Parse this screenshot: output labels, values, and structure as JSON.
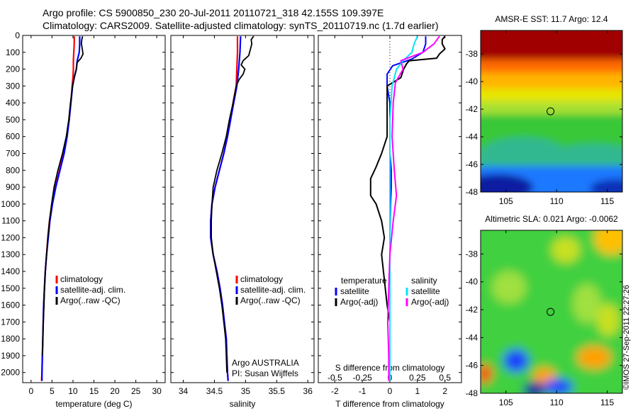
{
  "header": {
    "line1": "Argo profile: CS 5900850_230 20-Jul-2011 20110721_318 42.155S 109.397E",
    "line2": "Climatology: CARS2009. Satellite-adjusted climatology: synTS_20110719.nc (1.7d earlier)"
  },
  "watermark": "©IMOS 27-Sep-2011 22:27:26",
  "colors": {
    "climatology": "#ff0000",
    "satellite": "#0000ff",
    "argo": "#000000",
    "s_satellite": "#00e5ff",
    "s_argo": "#ff00ff"
  },
  "chart_data": [
    {
      "type": "line",
      "xlabel": "temperature (deg C)",
      "ylabel": "",
      "xlim": [
        -2,
        32
      ],
      "ylim": [
        2060,
        0
      ],
      "xticks": [
        0,
        5,
        10,
        15,
        20,
        25,
        30
      ],
      "yticks": [
        0,
        100,
        200,
        300,
        400,
        500,
        600,
        700,
        800,
        900,
        1000,
        1100,
        1200,
        1300,
        1400,
        1500,
        1600,
        1700,
        1800,
        1900,
        2000
      ],
      "legend": [
        "climatology",
        "satellite-adj. clim.",
        "Argo(..raw -QC)"
      ],
      "legend_position": "center-right",
      "series": [
        {
          "name": "climatology",
          "color": "climatology",
          "points": [
            [
              10.3,
              5
            ],
            [
              10.3,
              50
            ],
            [
              10.2,
              100
            ],
            [
              10.1,
              150
            ],
            [
              10.1,
              200
            ],
            [
              10.0,
              250
            ],
            [
              9.8,
              300
            ],
            [
              9.5,
              400
            ],
            [
              9.1,
              500
            ],
            [
              8.5,
              600
            ],
            [
              7.8,
              700
            ],
            [
              6.8,
              800
            ],
            [
              5.8,
              900
            ],
            [
              5.0,
              1000
            ],
            [
              4.4,
              1100
            ],
            [
              4.0,
              1200
            ],
            [
              3.7,
              1300
            ],
            [
              3.4,
              1400
            ],
            [
              3.2,
              1500
            ],
            [
              3.0,
              1600
            ],
            [
              2.9,
              1700
            ],
            [
              2.8,
              1800
            ],
            [
              2.7,
              1900
            ],
            [
              2.6,
              2000
            ],
            [
              2.5,
              2050
            ]
          ]
        },
        {
          "name": "satellite-adj. clim.",
          "color": "satellite",
          "points": [
            [
              11.6,
              5
            ],
            [
              11.6,
              50
            ],
            [
              11.5,
              100
            ],
            [
              11.0,
              150
            ],
            [
              10.8,
              200
            ],
            [
              10.3,
              250
            ],
            [
              9.9,
              300
            ],
            [
              9.5,
              400
            ],
            [
              9.1,
              500
            ],
            [
              8.6,
              600
            ],
            [
              7.9,
              700
            ],
            [
              6.9,
              800
            ],
            [
              5.9,
              900
            ],
            [
              5.1,
              1000
            ],
            [
              4.5,
              1100
            ],
            [
              4.1,
              1200
            ],
            [
              3.7,
              1300
            ],
            [
              3.4,
              1400
            ],
            [
              3.2,
              1500
            ],
            [
              3.0,
              1600
            ],
            [
              2.9,
              1700
            ],
            [
              2.8,
              1800
            ],
            [
              2.7,
              1900
            ],
            [
              2.6,
              2000
            ],
            [
              2.6,
              2050
            ]
          ]
        },
        {
          "name": "Argo(..raw -QC)",
          "color": "argo",
          "points": [
            [
              12.3,
              5
            ],
            [
              12.1,
              25
            ],
            [
              12.0,
              50
            ],
            [
              12.2,
              75
            ],
            [
              12.4,
              110
            ],
            [
              11.9,
              135
            ],
            [
              11.0,
              160
            ],
            [
              10.8,
              200
            ],
            [
              10.3,
              250
            ],
            [
              9.9,
              300
            ],
            [
              9.4,
              400
            ],
            [
              9.0,
              500
            ],
            [
              8.4,
              600
            ],
            [
              7.5,
              700
            ],
            [
              6.4,
              800
            ],
            [
              5.5,
              900
            ],
            [
              4.9,
              1000
            ],
            [
              4.4,
              1100
            ],
            [
              4.0,
              1200
            ],
            [
              3.7,
              1300
            ],
            [
              3.4,
              1400
            ],
            [
              3.2,
              1500
            ],
            [
              3.1,
              1600
            ],
            [
              2.9,
              1700
            ],
            [
              2.8,
              1800
            ],
            [
              2.7,
              1900
            ]
          ]
        }
      ]
    },
    {
      "type": "line",
      "xlabel": "salinity",
      "ylabel": "",
      "xlim": [
        33.8,
        36.1
      ],
      "ylim": [
        2060,
        0
      ],
      "xticks": [
        34,
        34.5,
        35,
        35.5,
        36
      ],
      "xtick_labels": [
        "34",
        "34.5",
        "35",
        "35.5",
        "36"
      ],
      "legend": [
        "climatology",
        "satellite-adj. clim.",
        "Argo(..raw -QC)"
      ],
      "legend_position": "center-right",
      "annotation": [
        "Argo AUSTRALIA",
        "PI: Susan Wijffels"
      ],
      "series": [
        {
          "name": "climatology",
          "color": "climatology",
          "points": [
            [
              34.87,
              5
            ],
            [
              34.87,
              100
            ],
            [
              34.86,
              200
            ],
            [
              34.85,
              300
            ],
            [
              34.8,
              400
            ],
            [
              34.76,
              500
            ],
            [
              34.71,
              600
            ],
            [
              34.65,
              700
            ],
            [
              34.58,
              800
            ],
            [
              34.51,
              900
            ],
            [
              34.46,
              1000
            ],
            [
              34.44,
              1100
            ],
            [
              34.44,
              1200
            ],
            [
              34.48,
              1300
            ],
            [
              34.54,
              1400
            ],
            [
              34.59,
              1500
            ],
            [
              34.63,
              1600
            ],
            [
              34.66,
              1700
            ],
            [
              34.69,
              1800
            ],
            [
              34.7,
              1900
            ],
            [
              34.71,
              2000
            ],
            [
              34.72,
              2050
            ]
          ]
        },
        {
          "name": "satellite-adj. clim.",
          "color": "satellite",
          "points": [
            [
              34.92,
              5
            ],
            [
              34.91,
              100
            ],
            [
              34.89,
              200
            ],
            [
              34.86,
              300
            ],
            [
              34.81,
              400
            ],
            [
              34.76,
              500
            ],
            [
              34.71,
              600
            ],
            [
              34.65,
              700
            ],
            [
              34.58,
              800
            ],
            [
              34.51,
              900
            ],
            [
              34.46,
              1000
            ],
            [
              34.44,
              1100
            ],
            [
              34.44,
              1200
            ],
            [
              34.48,
              1300
            ],
            [
              34.54,
              1400
            ],
            [
              34.59,
              1500
            ],
            [
              34.63,
              1600
            ],
            [
              34.66,
              1700
            ],
            [
              34.69,
              1800
            ],
            [
              34.7,
              1900
            ],
            [
              34.71,
              2000
            ],
            [
              34.72,
              2050
            ]
          ]
        },
        {
          "name": "Argo(..raw -QC)",
          "color": "argo",
          "points": [
            [
              35.13,
              5
            ],
            [
              35.09,
              25
            ],
            [
              35.1,
              50
            ],
            [
              35.08,
              80
            ],
            [
              35.05,
              120
            ],
            [
              34.96,
              150
            ],
            [
              34.93,
              175
            ],
            [
              34.99,
              200
            ],
            [
              34.96,
              230
            ],
            [
              34.9,
              260
            ],
            [
              34.85,
              300
            ],
            [
              34.8,
              400
            ],
            [
              34.74,
              500
            ],
            [
              34.69,
              600
            ],
            [
              34.62,
              700
            ],
            [
              34.54,
              800
            ],
            [
              34.48,
              900
            ],
            [
              34.46,
              1000
            ],
            [
              34.45,
              1100
            ],
            [
              34.45,
              1200
            ],
            [
              34.48,
              1300
            ],
            [
              34.53,
              1400
            ],
            [
              34.58,
              1500
            ],
            [
              34.62,
              1600
            ],
            [
              34.65,
              1700
            ],
            [
              34.68,
              1800
            ],
            [
              34.69,
              1900
            ],
            [
              34.7,
              2000
            ]
          ]
        }
      ]
    },
    {
      "type": "line",
      "xlabel": "T difference from climatology",
      "x2label": "S difference from climatology",
      "xlim": [
        -2.6,
        2.6
      ],
      "ylim": [
        2060,
        0
      ],
      "xticks": [
        -2,
        -1,
        0,
        1,
        2
      ],
      "x2lim": [
        -0.65,
        0.65
      ],
      "x2ticks": [
        -0.5,
        -0.25,
        0,
        0.25,
        0.5
      ],
      "x2tick_labels": [
        "-0.5",
        "-0.25",
        "0",
        "0.25",
        "0.5"
      ],
      "zero_line": "dotted",
      "legend_left_title": "temperature",
      "legend_left": [
        "satellite",
        "Argo(-adj)"
      ],
      "legend_right_title": "salinity",
      "legend_right": [
        "satellite",
        "Argo(-adj)"
      ],
      "series": [
        {
          "name": "satellite",
          "group": "temperature",
          "color": "satellite",
          "points": [
            [
              1.3,
              5
            ],
            [
              1.3,
              50
            ],
            [
              1.2,
              100
            ],
            [
              0.8,
              140
            ],
            [
              0.1,
              180
            ],
            [
              -0.1,
              230
            ],
            [
              -0.1,
              300
            ],
            [
              0,
              400
            ],
            [
              0,
              500
            ],
            [
              0,
              700
            ],
            [
              0.05,
              800
            ],
            [
              0.05,
              900
            ],
            [
              0.02,
              1000
            ],
            [
              0,
              1200
            ],
            [
              0,
              1500
            ],
            [
              0,
              1800
            ],
            [
              0,
              2050
            ]
          ]
        },
        {
          "name": "Argo(-adj)",
          "group": "temperature",
          "color": "argo",
          "points": [
            [
              2.0,
              5
            ],
            [
              1.9,
              25
            ],
            [
              1.9,
              50
            ],
            [
              2.0,
              80
            ],
            [
              1.8,
              110
            ],
            [
              1.7,
              135
            ],
            [
              0.7,
              150
            ],
            [
              0.6,
              170
            ],
            [
              0.5,
              200
            ],
            [
              0.4,
              250
            ],
            [
              -0.1,
              300
            ],
            [
              -0.1,
              400
            ],
            [
              -0.1,
              500
            ],
            [
              -0.1,
              600
            ],
            [
              -0.3,
              700
            ],
            [
              -0.5,
              780
            ],
            [
              -0.7,
              850
            ],
            [
              -0.7,
              950
            ],
            [
              -0.5,
              1000
            ],
            [
              -0.3,
              1100
            ],
            [
              -0.2,
              1200
            ],
            [
              -0.3,
              1300
            ],
            [
              -0.2,
              1450
            ],
            [
              -0.1,
              1600
            ],
            [
              0,
              1700
            ],
            [
              0,
              1800
            ],
            [
              0,
              1900
            ]
          ]
        },
        {
          "name": "satellite",
          "group": "salinity",
          "color": "s_satellite",
          "points": [
            [
              0.25,
              5
            ],
            [
              0.22,
              50
            ],
            [
              0.2,
              100
            ],
            [
              0.12,
              150
            ],
            [
              0.06,
              200
            ],
            [
              0.02,
              300
            ],
            [
              0,
              500
            ],
            [
              0,
              800
            ],
            [
              0,
              1200
            ],
            [
              0,
              1600
            ],
            [
              0,
              2050
            ]
          ]
        },
        {
          "name": "Argo(-adj)",
          "group": "salinity",
          "color": "s_argo",
          "points": [
            [
              0.45,
              5
            ],
            [
              0.4,
              50
            ],
            [
              0.3,
              100
            ],
            [
              0.1,
              150
            ],
            [
              0.12,
              200
            ],
            [
              0.05,
              280
            ],
            [
              0.03,
              400
            ],
            [
              0.02,
              600
            ],
            [
              0.04,
              800
            ],
            [
              0.06,
              950
            ],
            [
              0.03,
              1100
            ],
            [
              0,
              1300
            ],
            [
              -0.01,
              1500
            ],
            [
              -0.02,
              1700
            ],
            [
              -0.01,
              1900
            ],
            [
              -0.01,
              2050
            ]
          ]
        }
      ]
    },
    {
      "type": "heatmap",
      "title": "AMSR-E SST: 11.7 Argo: 12.4",
      "xlim": [
        102.5,
        116.5
      ],
      "ylim": [
        -48,
        -36.3
      ],
      "xticks": [
        105,
        110,
        115
      ],
      "yticks": [
        -38,
        -40,
        -42,
        -44,
        -46,
        -48
      ],
      "marker": {
        "lon": 109.4,
        "lat": -42.155
      }
    },
    {
      "type": "heatmap",
      "title": "Altimetric SLA: 0.021 Argo: -0.0062",
      "xlim": [
        102.5,
        116.5
      ],
      "ylim": [
        -48,
        -36.3
      ],
      "xticks": [
        105,
        110,
        115
      ],
      "yticks": [
        -38,
        -40,
        -42,
        -44,
        -46,
        -48
      ],
      "marker": {
        "lon": 109.4,
        "lat": -42.155
      }
    }
  ]
}
